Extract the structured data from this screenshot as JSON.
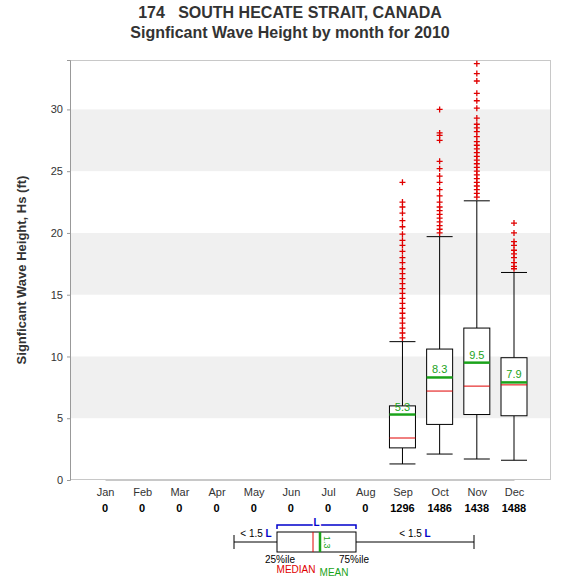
{
  "chart_data": {
    "type": "box",
    "title": "174   SOUTH HECATE STRAIT, CANADA",
    "subtitle": "Signficant Wave Height by month for 2010",
    "y_label": "Signficant Wave Height, Hs (ft)",
    "categories": [
      "Jan",
      "Feb",
      "Mar",
      "Apr",
      "May",
      "Jun",
      "Jul",
      "Aug",
      "Sep",
      "Oct",
      "Nov",
      "Dec"
    ],
    "counts": [
      0,
      0,
      0,
      0,
      0,
      0,
      0,
      0,
      1296,
      1486,
      1438,
      1488
    ],
    "boxes": [
      null,
      null,
      null,
      null,
      null,
      null,
      null,
      null,
      {
        "low": 1.3,
        "q1": 2.6,
        "median": 3.4,
        "q3": 6.0,
        "high": 11.2,
        "mean": 5.3,
        "outliers": [
          11.5,
          11.9,
          12.3,
          12.7,
          13.1,
          13.5,
          13.9,
          14.3,
          14.7,
          15.1,
          15.5,
          15.9,
          16.3,
          16.7,
          17.1,
          17.6,
          18.0,
          18.5,
          19.0,
          19.4,
          19.9,
          20.5,
          21.0,
          21.6,
          22.1,
          22.5,
          24.1
        ]
      },
      {
        "low": 2.1,
        "q1": 4.5,
        "median": 7.2,
        "q3": 10.6,
        "high": 19.7,
        "mean": 8.3,
        "outliers": [
          20.0,
          20.3,
          20.6,
          20.9,
          21.2,
          21.5,
          21.8,
          22.1,
          22.5,
          23.0,
          23.5,
          24.1,
          24.6,
          25.2,
          25.8,
          27.5,
          27.9,
          28.1,
          30.0
        ]
      },
      {
        "low": 1.7,
        "q1": 5.3,
        "median": 7.6,
        "q3": 12.3,
        "high": 22.6,
        "mean": 9.5,
        "outliers": [
          22.9,
          23.2,
          23.5,
          23.8,
          24.1,
          24.4,
          24.7,
          25.0,
          25.3,
          25.6,
          25.9,
          26.2,
          26.5,
          26.8,
          27.1,
          27.4,
          27.8,
          28.2,
          28.5,
          28.8,
          29.3,
          30.1,
          30.7,
          31.3,
          32.3,
          32.9,
          33.7
        ]
      },
      {
        "low": 1.6,
        "q1": 5.2,
        "median": 7.7,
        "q3": 9.9,
        "high": 16.8,
        "mean": 7.9,
        "outliers": [
          17.1,
          17.3,
          17.6,
          18.0,
          18.3,
          18.6,
          19.0,
          19.3,
          20.0,
          20.8
        ]
      }
    ],
    "ylim": [
      0,
      34
    ],
    "yticks": [
      0,
      5,
      10,
      15,
      20,
      25,
      30
    ],
    "grid": true,
    "data_labels": true,
    "color": "#000000",
    "annotations": {
      "span": "L",
      "whisker": "< 1.5 L",
      "q1": "25%ile",
      "q3": "75%ile",
      "median": "MEDIAN",
      "mean": "MEAN",
      "mean_value": "1.3"
    }
  }
}
